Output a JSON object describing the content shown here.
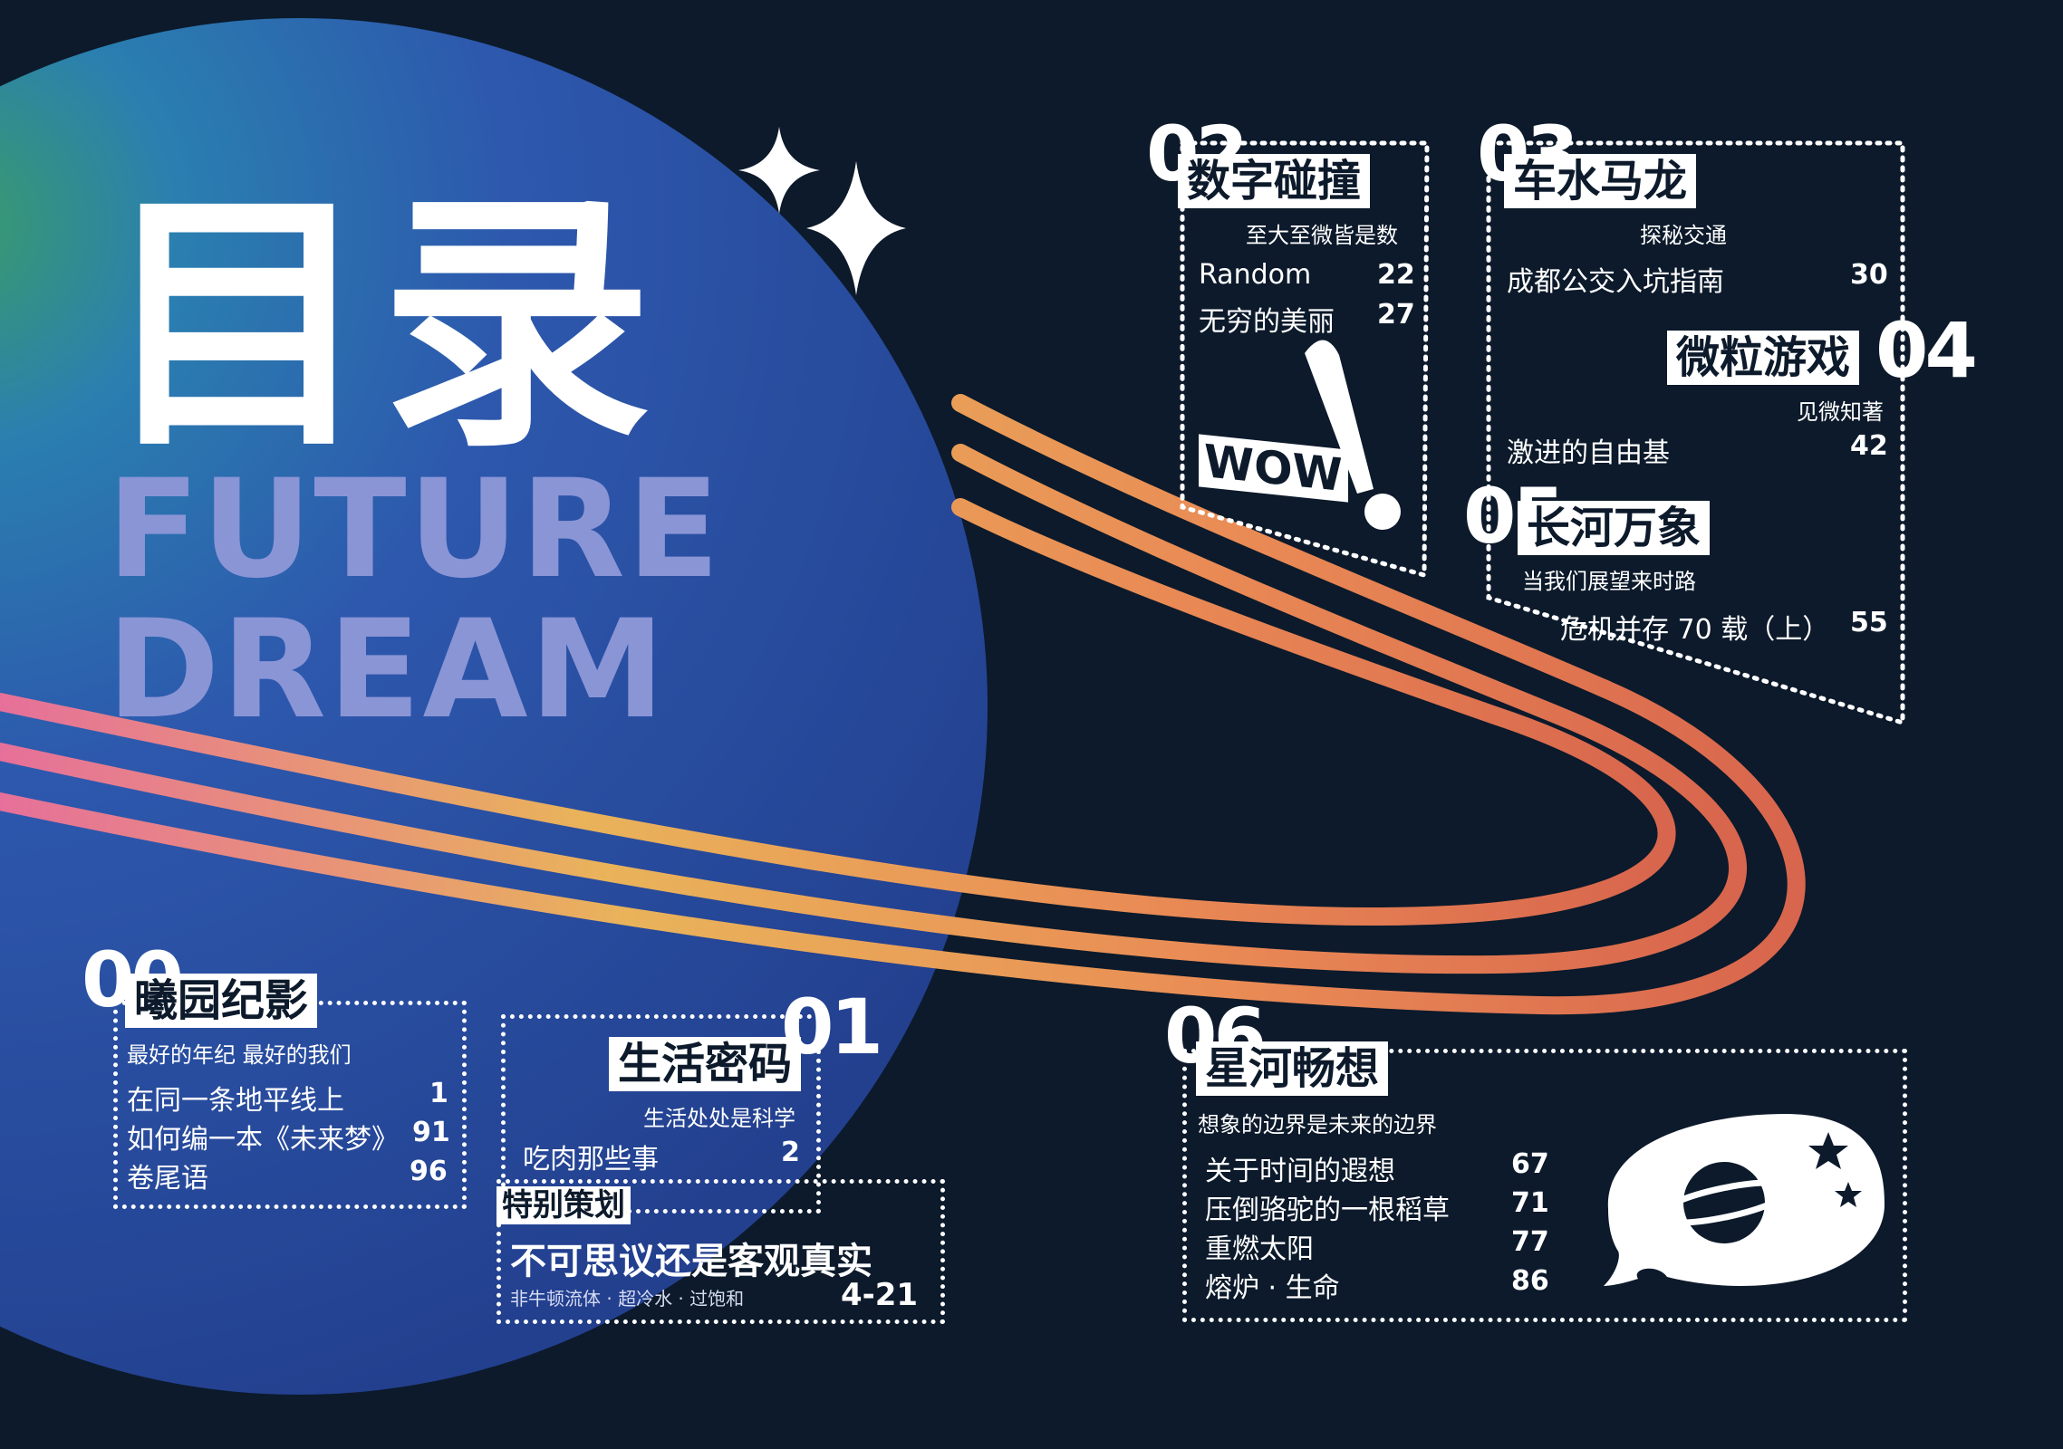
{
  "title": {
    "cn": "目录",
    "en_line1": "FUTURE",
    "en_line2": "DREAM"
  },
  "sections": {
    "s00": {
      "num": "00",
      "label": "曦园纪影",
      "sub": "最好的年纪 最好的我们",
      "items": [
        {
          "t": "在同一条地平线上",
          "p": "1"
        },
        {
          "t": "如何编一本《未来梦》",
          "p": "91"
        },
        {
          "t": "卷尾语",
          "p": "96"
        }
      ]
    },
    "s01": {
      "num": "01",
      "label": "生活密码",
      "sub": "生活处处是科学",
      "items": [
        {
          "t": "吃肉那些事",
          "p": "2"
        }
      ]
    },
    "special": {
      "label": "特别策划",
      "headline": "不可思议还是客观真实",
      "sub": "非牛顿流体 · 超冷水 · 过饱和",
      "pages": "4-21"
    },
    "s02": {
      "num": "02",
      "label": "数字碰撞",
      "sub": "至大至微皆是数",
      "items": [
        {
          "t": "Random",
          "p": "22"
        },
        {
          "t": "无穷的美丽",
          "p": "27"
        }
      ],
      "wow": "WOW"
    },
    "s03": {
      "num": "03",
      "label": "车水马龙",
      "sub": "探秘交通",
      "items": [
        {
          "t": "成都公交入坑指南",
          "p": "30"
        }
      ]
    },
    "s04": {
      "num": "04",
      "label": "微粒游戏",
      "sub": "见微知著",
      "items": [
        {
          "t": "激进的自由基",
          "p": "42"
        }
      ]
    },
    "s05": {
      "num": "05",
      "label": "长河万象",
      "sub": "当我们展望来时路",
      "items": [
        {
          "t": "危机并存 70 载（上）",
          "p": "55"
        }
      ]
    },
    "s06": {
      "num": "06",
      "label": "星河畅想",
      "sub": "想象的边界是未来的边界",
      "items": [
        {
          "t": "关于时间的遐想",
          "p": "67"
        },
        {
          "t": "压倒骆驼的一根稻草",
          "p": "71"
        },
        {
          "t": "重燃太阳",
          "p": "77"
        },
        {
          "t": "熔炉 · 生命",
          "p": "86"
        }
      ]
    }
  },
  "colors": {
    "background": "#0c1a2b",
    "planet": "#2d55a8",
    "ring": "#e8a24a",
    "accent_en": "#8a95d6"
  }
}
